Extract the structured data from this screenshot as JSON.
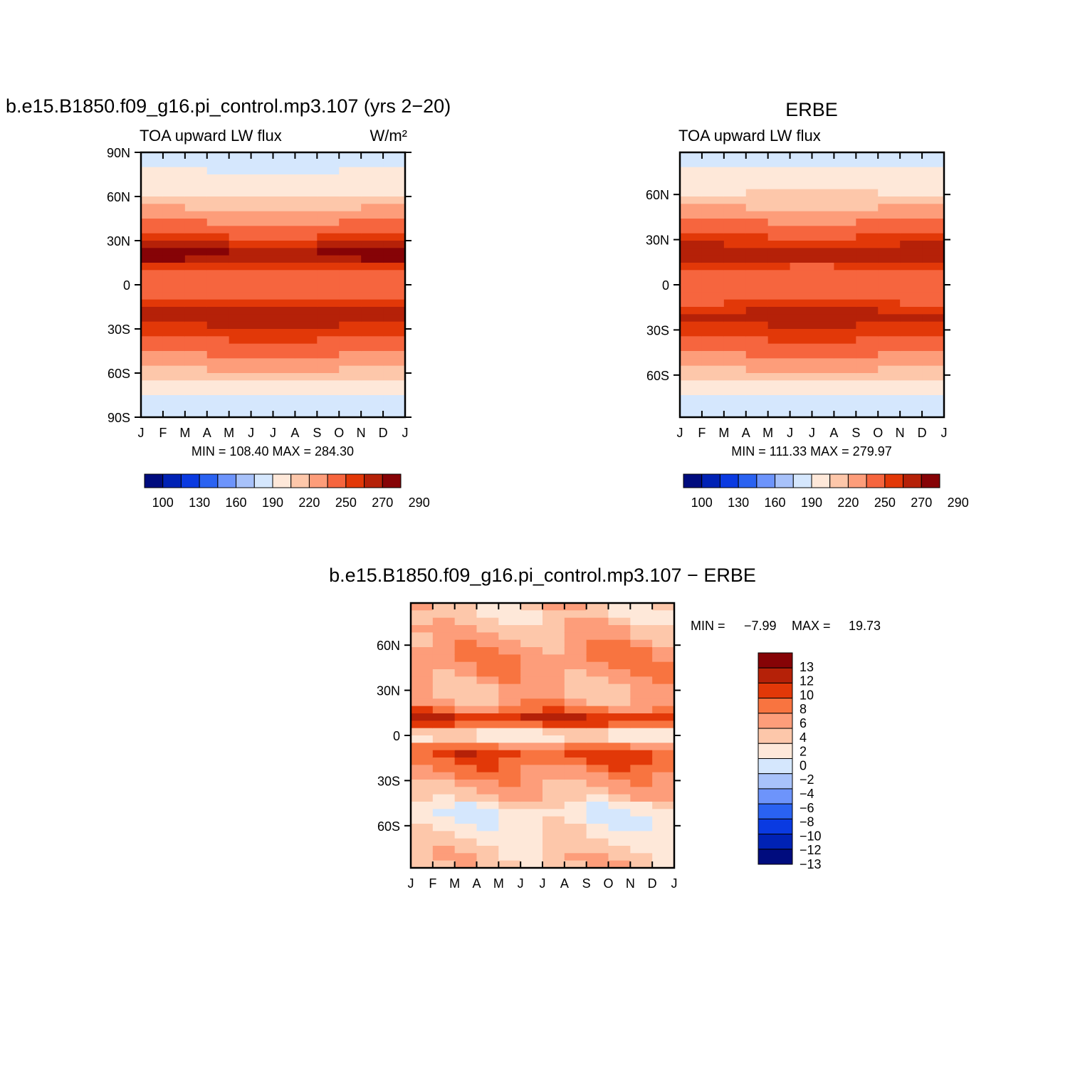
{
  "palettes": {
    "field": [
      "#000c7e",
      "#0022b5",
      "#0a3ae1",
      "#2a62f1",
      "#6d94fb",
      "#a8c2fa",
      "#d5e7fd",
      "#fee8d9",
      "#fdc7aa",
      "#fd9d7a",
      "#f6653e",
      "#e23808",
      "#b52108",
      "#860306"
    ],
    "diff": [
      "#000c7e",
      "#0022b5",
      "#0a3ae1",
      "#2a62f1",
      "#6d94fb",
      "#a8c2fa",
      "#d5e7fd",
      "#fee8d9",
      "#fdc7aa",
      "#fd9d7a",
      "#f87440",
      "#e23808",
      "#b52108",
      "#860306"
    ]
  },
  "chart_data": [
    {
      "type": "heatmap",
      "title": "b.e15.B1850.f09_g16.pi_control.mp3.107 (yrs 2−20)",
      "left_label": "TOA upward LW flux",
      "units_label": "W/m²",
      "x_ticks": [
        "J",
        "F",
        "M",
        "A",
        "M",
        "J",
        "J",
        "A",
        "S",
        "O",
        "N",
        "D",
        "J"
      ],
      "y_ticks": [
        {
          "lat": 90,
          "label": "90N"
        },
        {
          "lat": 60,
          "label": "60N"
        },
        {
          "lat": 30,
          "label": "30N"
        },
        {
          "lat": 0,
          "label": "0"
        },
        {
          "lat": -30,
          "label": "30S"
        },
        {
          "lat": -60,
          "label": "60S"
        },
        {
          "lat": -90,
          "label": "90S"
        }
      ],
      "ylim": [
        -90,
        90
      ],
      "stats": "MIN =  108.40  MAX =  284.30",
      "levels": [
        100,
        115,
        130,
        145,
        160,
        175,
        190,
        205,
        220,
        235,
        250,
        260,
        270,
        280
      ],
      "colorbar_labels": [
        "100",
        "130",
        "160",
        "190",
        "220",
        "250",
        "270",
        "290"
      ],
      "x_months": [
        0.5,
        1.5,
        2.5,
        3.5,
        4.5,
        5.5,
        6.5,
        7.5,
        8.5,
        9.5,
        10.5,
        11.5
      ],
      "lat_profile": [
        [
          -90,
          180
        ],
        [
          -80,
          180
        ],
        [
          -70,
          196
        ],
        [
          -60,
          215
        ],
        [
          -50,
          230
        ],
        [
          -40,
          246
        ],
        [
          -30,
          258
        ],
        [
          -20,
          268
        ],
        [
          -10,
          248
        ],
        [
          0,
          232
        ],
        [
          10,
          248
        ],
        [
          20,
          276
        ],
        [
          30,
          256
        ],
        [
          40,
          240
        ],
        [
          50,
          222
        ],
        [
          60,
          206
        ],
        [
          70,
          196
        ],
        [
          80,
          188
        ],
        [
          90,
          180
        ]
      ]
    },
    {
      "type": "heatmap",
      "title": "ERBE",
      "left_label": "TOA upward LW flux",
      "x_ticks": [
        "J",
        "F",
        "M",
        "A",
        "M",
        "J",
        "J",
        "A",
        "S",
        "O",
        "N",
        "D",
        "J"
      ],
      "y_ticks": [
        {
          "lat": 60,
          "label": "60N"
        },
        {
          "lat": 30,
          "label": "30N"
        },
        {
          "lat": 0,
          "label": "0"
        },
        {
          "lat": -30,
          "label": "30S"
        },
        {
          "lat": -60,
          "label": "60S"
        }
      ],
      "ylim": [
        -88,
        88
      ],
      "stats": "MIN =  111.33  MAX =  279.97",
      "levels": [
        100,
        115,
        130,
        145,
        160,
        175,
        190,
        205,
        220,
        235,
        250,
        260,
        270,
        280
      ],
      "colorbar_labels": [
        "100",
        "130",
        "160",
        "190",
        "220",
        "250",
        "270",
        "290"
      ],
      "x_months": [
        0.5,
        1.5,
        2.5,
        3.5,
        4.5,
        5.5,
        6.5,
        7.5,
        8.5,
        9.5,
        10.5,
        11.5
      ],
      "lat_profile": [
        [
          -88,
          180
        ],
        [
          -80,
          182
        ],
        [
          -70,
          196
        ],
        [
          -60,
          214
        ],
        [
          -50,
          230
        ],
        [
          -40,
          244
        ],
        [
          -30,
          256
        ],
        [
          -20,
          266
        ],
        [
          -10,
          246
        ],
        [
          0,
          236
        ],
        [
          10,
          246
        ],
        [
          20,
          268
        ],
        [
          30,
          254
        ],
        [
          40,
          240
        ],
        [
          50,
          222
        ],
        [
          60,
          206
        ],
        [
          70,
          196
        ],
        [
          80,
          188
        ],
        [
          88,
          182
        ]
      ]
    },
    {
      "type": "heatmap",
      "title": "b.e15.B1850.f09_g16.pi_control.mp3.107 − ERBE",
      "x_ticks": [
        "J",
        "F",
        "M",
        "A",
        "M",
        "J",
        "J",
        "A",
        "S",
        "O",
        "N",
        "D",
        "J"
      ],
      "y_ticks": [
        {
          "lat": 60,
          "label": "60N"
        },
        {
          "lat": 30,
          "label": "30N"
        },
        {
          "lat": 0,
          "label": "0"
        },
        {
          "lat": -30,
          "label": "30S"
        },
        {
          "lat": -60,
          "label": "60S"
        }
      ],
      "ylim": [
        -88,
        88
      ],
      "stats_min_label": "MIN =",
      "stats_min": "−7.99",
      "stats_max_label": "MAX =",
      "stats_max": "19.73",
      "levels": [
        -13,
        -12,
        -10,
        -8,
        -6,
        -4,
        -2,
        0,
        2,
        4,
        6,
        8,
        10,
        12,
        13
      ],
      "colorbar_labels": [
        "13",
        "12",
        "10",
        "8",
        "6",
        "4",
        "2",
        "0",
        "−2",
        "−4",
        "−6",
        "−8",
        "−10",
        "−12",
        "−13"
      ],
      "x_months": [
        0.5,
        1.5,
        2.5,
        3.5,
        4.5,
        5.5,
        6.5,
        7.5,
        8.5,
        9.5,
        10.5,
        11.5
      ],
      "lat_profile": [
        [
          -88,
          1
        ],
        [
          -80,
          1
        ],
        [
          -70,
          0
        ],
        [
          -60,
          -1
        ],
        [
          -50,
          -2
        ],
        [
          -40,
          2
        ],
        [
          -30,
          3
        ],
        [
          -20,
          5
        ],
        [
          -10,
          7
        ],
        [
          0,
          -3
        ],
        [
          10,
          9
        ],
        [
          20,
          3
        ],
        [
          30,
          2
        ],
        [
          40,
          3
        ],
        [
          50,
          4
        ],
        [
          60,
          3
        ],
        [
          70,
          2
        ],
        [
          80,
          0
        ],
        [
          88,
          1
        ]
      ]
    }
  ]
}
